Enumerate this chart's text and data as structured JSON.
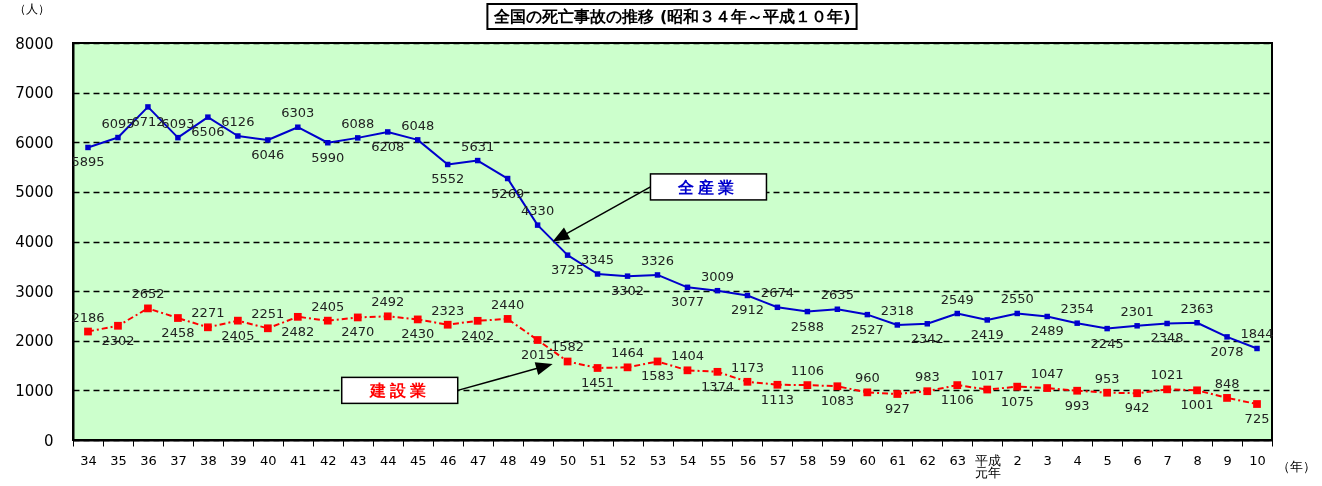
{
  "chart_data": {
    "type": "line",
    "title": "全国の死亡事故の推移 (昭和３４年～平成１０年)",
    "ylabel": "（人）",
    "xlabel": "（年）",
    "categories": [
      "34",
      "35",
      "36",
      "37",
      "38",
      "39",
      "40",
      "41",
      "42",
      "43",
      "44",
      "45",
      "46",
      "47",
      "48",
      "49",
      "50",
      "51",
      "52",
      "53",
      "54",
      "55",
      "56",
      "57",
      "58",
      "59",
      "60",
      "61",
      "62",
      "63",
      "平成元年",
      "2",
      "3",
      "4",
      "5",
      "6",
      "7",
      "8",
      "9",
      "10"
    ],
    "series": [
      {
        "name": "全産業",
        "color": "#0000cc",
        "line_style": "solid",
        "values": [
          5895,
          6095,
          6712,
          6093,
          6506,
          6126,
          6046,
          6303,
          5990,
          6088,
          6208,
          6048,
          5552,
          5631,
          5269,
          4330,
          3725,
          3345,
          3302,
          3326,
          3077,
          3009,
          2912,
          2674,
          2588,
          2635,
          2527,
          2318,
          2342,
          2549,
          2419,
          2550,
          2489,
          2354,
          2245,
          2301,
          2348,
          2363,
          2078,
          1844
        ]
      },
      {
        "name": "建設業",
        "color": "#ff0000",
        "line_style": "dashed",
        "values": [
          2186,
          2302,
          2652,
          2458,
          2271,
          2405,
          2251,
          2482,
          2405,
          2470,
          2492,
          2430,
          2323,
          2402,
          2440,
          2015,
          1582,
          1451,
          1464,
          1583,
          1404,
          1374,
          1173,
          1113,
          1106,
          1083,
          960,
          927,
          983,
          1106,
          1017,
          1075,
          1047,
          993,
          953,
          942,
          1021,
          1001,
          848,
          725
        ]
      }
    ],
    "ylim": [
      0,
      8000
    ],
    "yticks": [
      0,
      1000,
      2000,
      3000,
      4000,
      5000,
      6000,
      7000,
      8000
    ],
    "grid": "y",
    "marker": "square",
    "data_labels": true,
    "legend": false
  }
}
